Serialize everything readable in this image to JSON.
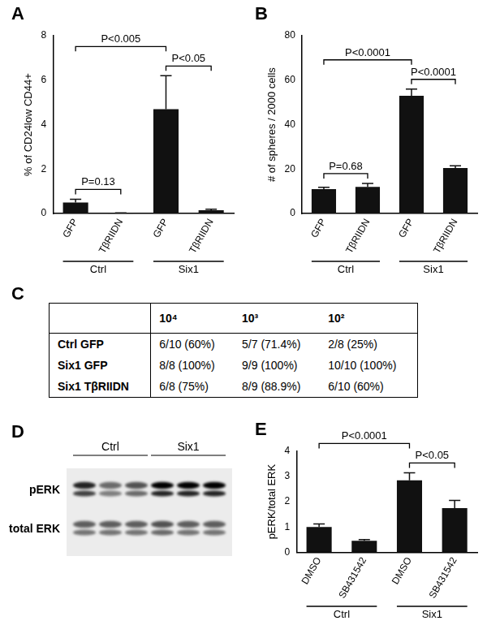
{
  "chart_data": [
    {
      "title": "A",
      "type": "bar",
      "categories": [
        "GFP",
        "TβRIIDN",
        "GFP",
        "TβRIIDN"
      ],
      "groups": [
        "Ctrl",
        "Ctrl",
        "Six1",
        "Six1"
      ],
      "values": [
        0.5,
        0.02,
        4.7,
        0.15
      ],
      "errors": [
        0.15,
        0.01,
        1.5,
        0.05
      ],
      "color": "#111111",
      "y_label": "% of CD24low CD44+",
      "ylim": [
        0,
        8
      ],
      "yticks": [
        0,
        2,
        4,
        6,
        8
      ],
      "grid": false,
      "annotations": [
        {
          "between": [
            0,
            1
          ],
          "text": "P=0.13"
        },
        {
          "between": [
            0,
            2
          ],
          "text": "P<0.005"
        },
        {
          "between": [
            2,
            3
          ],
          "text": "P<0.05"
        }
      ]
    },
    {
      "title": "B",
      "type": "bar",
      "categories": [
        "GFP",
        "TβRIIDN",
        "GFP",
        "TβRIIDN"
      ],
      "groups": [
        "Ctrl",
        "Ctrl",
        "Six1",
        "Six1"
      ],
      "values": [
        11,
        12,
        53,
        20.5
      ],
      "errors": [
        0.8,
        1.6,
        3,
        1
      ],
      "color": "#111111",
      "y_label": "# of spheres / 2000 cells",
      "ylim": [
        0,
        80
      ],
      "yticks": [
        0,
        20,
        40,
        60,
        80
      ],
      "grid": false,
      "annotations": [
        {
          "between": [
            0,
            1
          ],
          "text": "P=0.68"
        },
        {
          "between": [
            0,
            2
          ],
          "text": "P<0.0001"
        },
        {
          "between": [
            2,
            3
          ],
          "text": "P<0.0001"
        }
      ]
    },
    {
      "title": "E",
      "type": "bar",
      "categories": [
        "DMSO",
        "SB431542",
        "DMSO",
        "SB431542"
      ],
      "groups": [
        "Ctrl",
        "Ctrl",
        "Six1",
        "Six1"
      ],
      "values": [
        1.0,
        0.45,
        2.85,
        1.75
      ],
      "errors": [
        0.12,
        0.05,
        0.3,
        0.3
      ],
      "color": "#111111",
      "y_label": "pERK/total ERK",
      "ylim": [
        0,
        4
      ],
      "yticks": [
        0,
        1,
        2,
        3,
        4
      ],
      "grid": false,
      "annotations": [
        {
          "between": [
            0,
            2
          ],
          "text": "P<0.0001"
        },
        {
          "between": [
            2,
            3
          ],
          "text": "P<0.05"
        }
      ]
    }
  ],
  "table": {
    "title": "C",
    "header": [
      "",
      "10⁴",
      "10³",
      "10²"
    ],
    "rows": [
      [
        "Ctrl GFP",
        "6/10 (60%)",
        "5/7 (71.4%)",
        "2/8 (25%)"
      ],
      [
        "Six1 GFP",
        "8/8 (100%)",
        "9/9 (100%)",
        "10/10 (100%)"
      ],
      [
        "Six1 TβRIIDN",
        "6/8 (75%)",
        "8/9 (88.9%)",
        "6/10 (60%)"
      ]
    ]
  },
  "blot": {
    "title": "D",
    "lanes": [
      "Ctrl",
      "Ctrl",
      "Ctrl",
      "Six1",
      "Six1",
      "Six1"
    ],
    "rows": [
      {
        "label": "pERK",
        "intensity": [
          0.85,
          0.55,
          0.65,
          1.0,
          1.0,
          1.0
        ]
      },
      {
        "label": "total ERK",
        "intensity": [
          0.6,
          0.6,
          0.6,
          0.65,
          0.6,
          0.6
        ]
      }
    ]
  }
}
